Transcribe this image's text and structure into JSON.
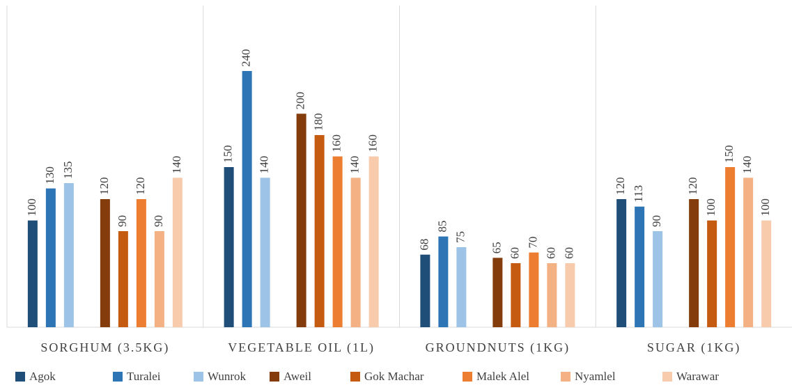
{
  "chart_data": {
    "type": "bar",
    "categories": [
      "SORGHUM (3.5KG)",
      "VEGETABLE OIL (1L)",
      "GROUNDNUTS (1KG)",
      "SUGAR (1KG)"
    ],
    "series": [
      {
        "name": "Agok",
        "color": "#1f4e79",
        "values": [
          100,
          150,
          68,
          120
        ]
      },
      {
        "name": "Turalei",
        "color": "#2e75b6",
        "values": [
          130,
          240,
          85,
          113
        ]
      },
      {
        "name": "Wunrok",
        "color": "#9dc3e6",
        "values": [
          135,
          140,
          75,
          90
        ]
      },
      {
        "name": "Aweil",
        "color": "#843c0c",
        "values": [
          120,
          200,
          65,
          120
        ]
      },
      {
        "name": "Gok Machar",
        "color": "#c55a11",
        "values": [
          90,
          180,
          60,
          100
        ]
      },
      {
        "name": "Malek Alel",
        "color": "#ed7d31",
        "values": [
          120,
          160,
          70,
          150
        ]
      },
      {
        "name": "Nyamlel",
        "color": "#f4b183",
        "values": [
          90,
          140,
          60,
          140
        ]
      },
      {
        "name": "Warawar",
        "color": "#f8cbad",
        "values": [
          140,
          160,
          60,
          100
        ]
      }
    ],
    "legend": "bottom"
  }
}
